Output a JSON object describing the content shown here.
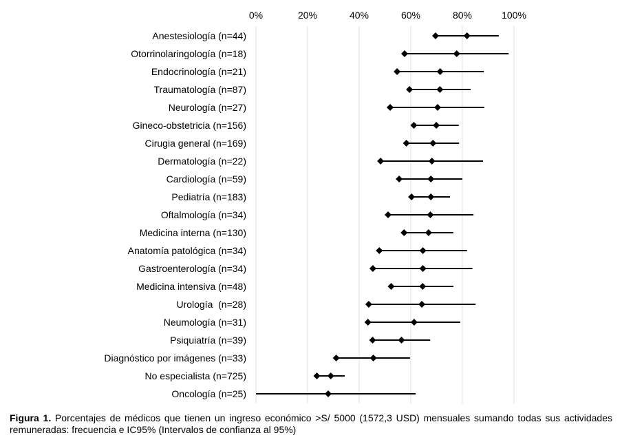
{
  "chart_data": {
    "type": "scatter",
    "subtype": "forest-plot",
    "title": "",
    "xlabel": "",
    "ylabel": "",
    "xlim": [
      0,
      100
    ],
    "x_ticks": [
      "0%",
      "20%",
      "40%",
      "60%",
      "80%",
      "100%"
    ],
    "x_tick_values": [
      0,
      20,
      40,
      60,
      80,
      100
    ],
    "x_axis_position": "top",
    "grid": true,
    "legend": "none",
    "series": [
      {
        "name": "Frecuencia (%)",
        "marker": "diamond"
      },
      {
        "name": "IC95% límite inferior",
        "marker": "diamond"
      },
      {
        "name": "IC95% límite superior",
        "marker": "none"
      }
    ],
    "rows": [
      {
        "label": "Anestesiología (n=44)",
        "estimate": 81.8,
        "lower": 69.6,
        "upper": 94.1
      },
      {
        "label": "Otorrinolaringología (n=18)",
        "estimate": 77.8,
        "lower": 57.6,
        "upper": 97.9
      },
      {
        "label": "Endocrinología (n=21)",
        "estimate": 71.4,
        "lower": 54.7,
        "upper": 88.3
      },
      {
        "label": "Traumatología (n=87)",
        "estimate": 71.3,
        "lower": 59.5,
        "upper": 83.2
      },
      {
        "label": "Neurología (n=27)",
        "estimate": 70.4,
        "lower": 52.0,
        "upper": 88.5
      },
      {
        "label": "Gineco-obstetricia (n=156)",
        "estimate": 69.9,
        "lower": 61.2,
        "upper": 78.6
      },
      {
        "label": "Cirugia general (n=169)",
        "estimate": 68.6,
        "lower": 58.3,
        "upper": 78.7
      },
      {
        "label": "Dermatología (n=22)",
        "estimate": 68.2,
        "lower": 48.3,
        "upper": 88.0
      },
      {
        "label": "Cardiología (n=59)",
        "estimate": 67.8,
        "lower": 55.5,
        "upper": 80.0
      },
      {
        "label": "Pediatría (n=183)",
        "estimate": 67.8,
        "lower": 60.3,
        "upper": 75.2
      },
      {
        "label": "Oftalmología (n=34)",
        "estimate": 67.6,
        "lower": 51.2,
        "upper": 84.3
      },
      {
        "label": "Medicina interna (n=130)",
        "estimate": 66.9,
        "lower": 57.4,
        "upper": 76.5
      },
      {
        "label": "Anatomía patológica (n=34)",
        "estimate": 64.7,
        "lower": 47.8,
        "upper": 81.8
      },
      {
        "label": "Gastroenterología (n=34)",
        "estimate": 64.7,
        "lower": 45.3,
        "upper": 83.9
      },
      {
        "label": "Medicina intensiva (n=48)",
        "estimate": 64.6,
        "lower": 52.4,
        "upper": 76.5
      },
      {
        "label": "Urología  (n=28)",
        "estimate": 64.3,
        "lower": 43.7,
        "upper": 85.1
      },
      {
        "label": "Neumología (n=31)",
        "estimate": 61.3,
        "lower": 43.4,
        "upper": 79.2
      },
      {
        "label": "Psiquiatría (n=39)",
        "estimate": 56.4,
        "lower": 45.2,
        "upper": 67.5
      },
      {
        "label": "Diagnóstico por imágenes (n=33)",
        "estimate": 45.5,
        "lower": 31.1,
        "upper": 59.7
      },
      {
        "label": "No especialista (n=725)",
        "estimate": 29.0,
        "lower": 23.6,
        "upper": 34.4
      },
      {
        "label": "Oncología (n=25)",
        "estimate": 28.0,
        "lower": 0.0,
        "upper": 61.9,
        "lower_marker_hidden": true
      }
    ],
    "colors": {
      "marker": "#000000",
      "line": "#000000",
      "grid": "#e4e4e4"
    }
  },
  "caption": {
    "label": "Figura 1.",
    "text": " Porcentajes de médicos que tienen un ingreso económico >S/ 5000 (1572,3 USD) mensuales sumando todas sus actividades remuneradas: frecuencia e IC95% (Intervalos de confianza al 95%)"
  }
}
